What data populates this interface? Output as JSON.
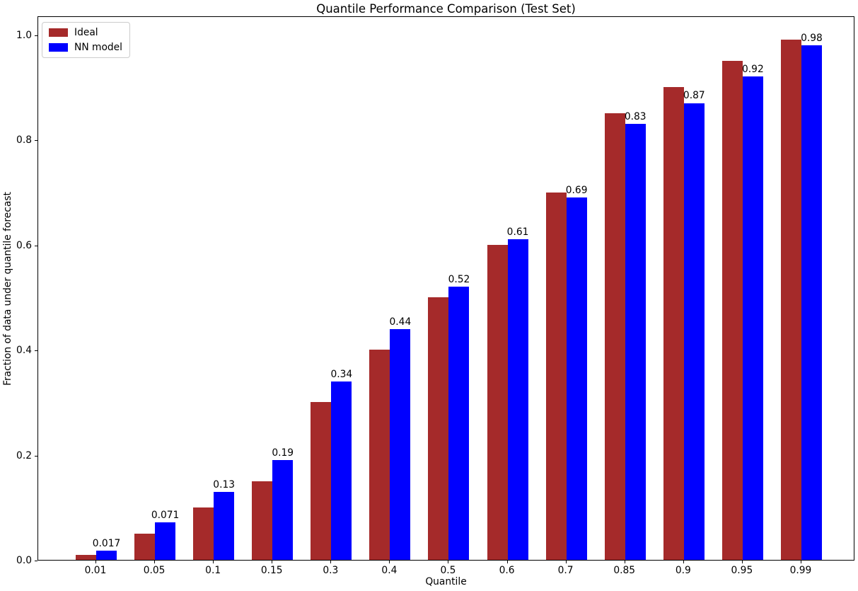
{
  "chart_data": {
    "type": "bar",
    "title": "Quantile Performance Comparison (Test Set)",
    "xlabel": "Quantile",
    "ylabel": "Fraction of data under quantile forecast",
    "categories": [
      "0.01",
      "0.05",
      "0.1",
      "0.15",
      "0.3",
      "0.4",
      "0.5",
      "0.6",
      "0.7",
      "0.85",
      "0.9",
      "0.95",
      "0.99"
    ],
    "series": [
      {
        "name": "Ideal",
        "color": "#a52a2a",
        "values": [
          0.01,
          0.05,
          0.1,
          0.15,
          0.3,
          0.4,
          0.5,
          0.6,
          0.7,
          0.85,
          0.9,
          0.95,
          0.99
        ]
      },
      {
        "name": "NN model",
        "color": "#0000ff",
        "values": [
          0.017,
          0.071,
          0.13,
          0.19,
          0.34,
          0.44,
          0.52,
          0.61,
          0.69,
          0.83,
          0.87,
          0.92,
          0.98
        ]
      }
    ],
    "bar_labels": [
      "0.017",
      "0.071",
      "0.13",
      "0.19",
      "0.34",
      "0.44",
      "0.52",
      "0.61",
      "0.69",
      "0.83",
      "0.87",
      "0.92",
      "0.98"
    ],
    "yticks": [
      "0.0",
      "0.2",
      "0.4",
      "0.6",
      "0.8",
      "1.0"
    ],
    "ylim": [
      0,
      1.036
    ],
    "grid": false,
    "legend_position": "upper left"
  }
}
